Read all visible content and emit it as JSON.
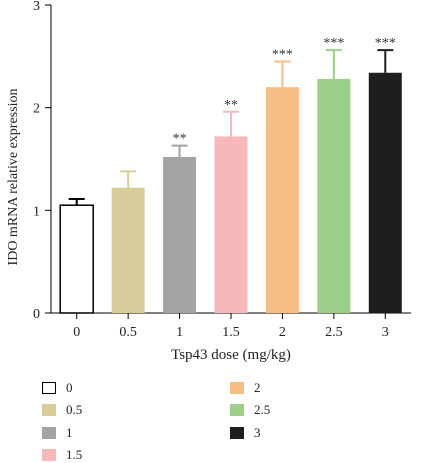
{
  "chart_data": {
    "type": "bar",
    "categories": [
      "0",
      "0.5",
      "1",
      "1.5",
      "2",
      "2.5",
      "3"
    ],
    "values": [
      1.05,
      1.22,
      1.52,
      1.72,
      2.2,
      2.28,
      2.34
    ],
    "error": [
      0.06,
      0.16,
      0.11,
      0.24,
      0.25,
      0.28,
      0.22
    ],
    "significance": [
      "",
      "",
      "**",
      "**",
      "***",
      "***",
      "***"
    ],
    "colors": [
      "#ffffff",
      "#d8cc9a",
      "#a3a3a3",
      "#f6b8b8",
      "#f8bd85",
      "#9ccf8a",
      "#1e1e1e"
    ],
    "xlabel": "Tsp43 dose (mg/kg)",
    "ylabel": "IDO mRNA relative expression",
    "ylim": [
      0,
      3
    ],
    "yticks": [
      "0",
      "1",
      "2",
      "3"
    ],
    "grid": false
  },
  "legend": {
    "left": [
      {
        "label": "0",
        "color": "#ffffff"
      },
      {
        "label": "0.5",
        "color": "#d8cc9a"
      },
      {
        "label": "1",
        "color": "#a3a3a3"
      },
      {
        "label": "1.5",
        "color": "#f6b8b8"
      }
    ],
    "right": [
      {
        "label": "2",
        "color": "#f8bd85"
      },
      {
        "label": "2.5",
        "color": "#9ccf8a"
      },
      {
        "label": "3",
        "color": "#1e1e1e"
      }
    ]
  }
}
